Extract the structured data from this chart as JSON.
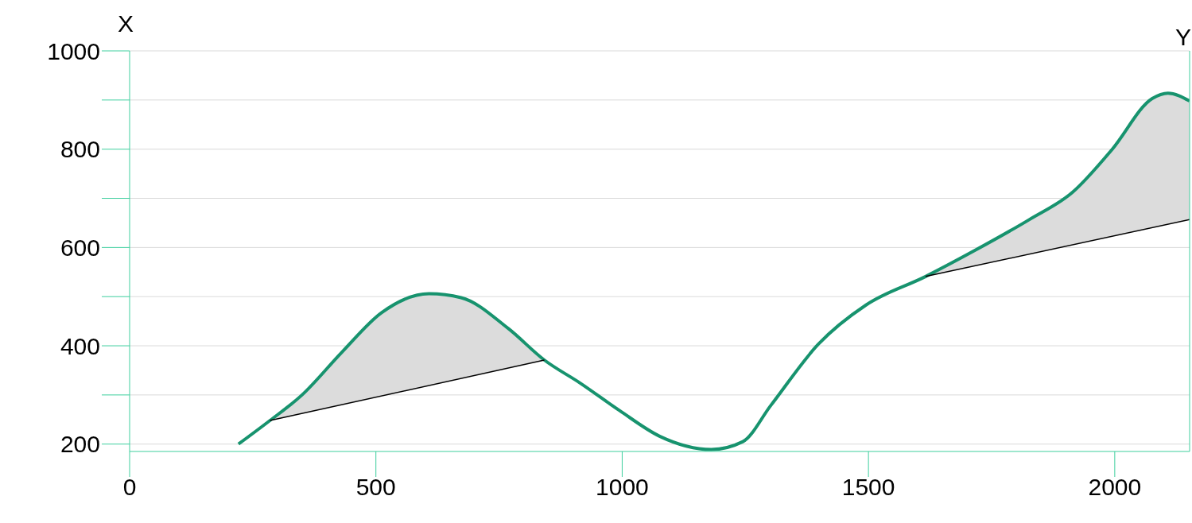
{
  "chart_data": {
    "type": "line",
    "xlabel": "Y",
    "ylabel": "X",
    "xlim": [
      0,
      2152
    ],
    "xticks": [
      0,
      500,
      1000,
      1500,
      2000
    ],
    "ylim": [
      185,
      1000
    ],
    "yticks": [
      200,
      {
        "value": 300,
        "label": null
      },
      400,
      {
        "value": 500,
        "label": null
      },
      600,
      {
        "value": 700,
        "label": null
      },
      800,
      {
        "value": 900,
        "label": null
      },
      1000
    ],
    "grid": "y",
    "marker": "none",
    "line_style": "solid",
    "series": [
      {
        "color": "#17936e",
        "x": [
          221,
          285,
          350,
          431,
          511,
          608,
          673,
          769,
          842,
          915,
          995,
          1076,
          1181,
          1245,
          1302,
          1398,
          1495,
          1616,
          1716,
          1827,
          1915,
          1995,
          2076,
          2108,
          2152
        ],
        "values": [
          200,
          248,
          300,
          387,
          467,
          506,
          498,
          435,
          371,
          324,
          268,
          216,
          189,
          205,
          279,
          403,
          483,
          541,
          594,
          657,
          713,
          800,
          903,
          914,
          898
        ],
        "lower": [
          null,
          248,
          262,
          280,
          298,
          319,
          334,
          355,
          371,
          null,
          null,
          null,
          null,
          null,
          null,
          null,
          null,
          541,
          563,
          587,
          606,
          623,
          641,
          647,
          657
        ],
        "upper": [
          null,
          248,
          300,
          387,
          467,
          506,
          498,
          435,
          371,
          null,
          null,
          null,
          null,
          null,
          null,
          null,
          null,
          541,
          594,
          657,
          713,
          800,
          903,
          914,
          898
        ]
      },
      {
        "color": "#000000",
        "x": [
          285,
          842
        ],
        "values": [
          248,
          371
        ]
      },
      {
        "color": "#000000",
        "x": [
          1616,
          2152
        ],
        "values": [
          541,
          657
        ]
      }
    ]
  }
}
